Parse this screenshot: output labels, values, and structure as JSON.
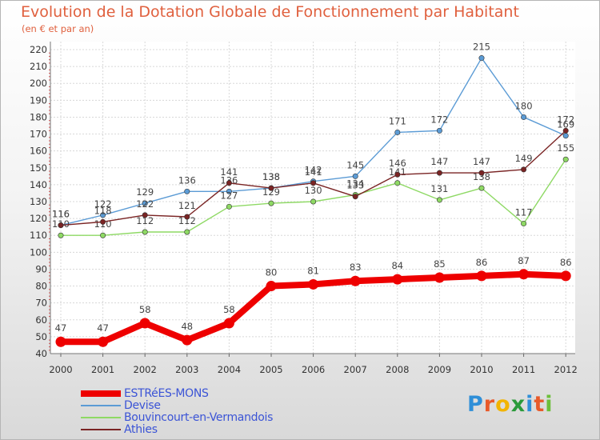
{
  "title": "Evolution de la Dotation Globale de Fonctionnement par Habitant",
  "subtitle": "(en € et par an)",
  "logo_text": "Proxiti",
  "chart_data": {
    "type": "line",
    "x": [
      "2000",
      "2001",
      "2002",
      "2003",
      "2004",
      "2005",
      "2006",
      "2007",
      "2008",
      "2009",
      "2010",
      "2011",
      "2012"
    ],
    "ylim": [
      40,
      220
    ],
    "yticks": [
      40,
      50,
      60,
      70,
      80,
      90,
      100,
      110,
      120,
      130,
      140,
      150,
      160,
      170,
      180,
      190,
      200,
      210,
      220
    ],
    "grid": true,
    "legend_position": "bottom-left",
    "series": [
      {
        "name": "ESTRéES-MONS",
        "color": "#ee0000",
        "values": [
          47,
          47,
          58,
          48,
          58,
          80,
          81,
          83,
          84,
          85,
          86,
          87,
          86
        ]
      },
      {
        "name": "Devise",
        "color": "#5b9bd5",
        "values": [
          116,
          122,
          129,
          136,
          136,
          138,
          142,
          145,
          171,
          172,
          215,
          180,
          169
        ]
      },
      {
        "name": "Bouvincourt-en-Vermandois",
        "color": "#8ed964",
        "values": [
          110,
          110,
          112,
          112,
          127,
          129,
          130,
          134,
          141,
          131,
          138,
          117,
          155
        ]
      },
      {
        "name": "Athies",
        "color": "#7a2424",
        "values": [
          116,
          118,
          122,
          121,
          141,
          138,
          141,
          133,
          146,
          147,
          147,
          149,
          172
        ]
      }
    ]
  }
}
